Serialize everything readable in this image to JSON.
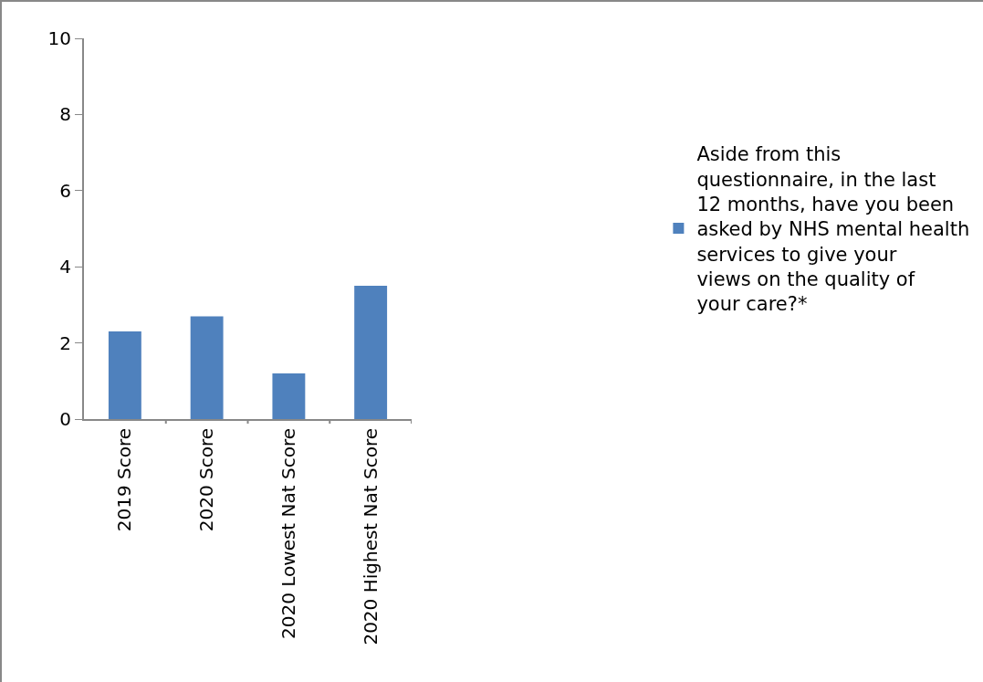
{
  "chart_data": {
    "type": "bar",
    "categories": [
      "2019 Score",
      "2020 Score",
      "2020 Lowest Nat Score",
      "2020 Highest Nat Score"
    ],
    "series": [
      {
        "name": "Aside from this questionnaire, in the last 12 months, have you been asked by NHS mental health services to give your views on the quality of your care?*",
        "color": "#4f81bd",
        "values": [
          2.3,
          2.7,
          1.2,
          3.5
        ]
      }
    ],
    "ylim": [
      0,
      10
    ],
    "yticks": [
      0,
      2,
      4,
      6,
      8,
      10
    ],
    "grid": false,
    "legend": "right"
  }
}
